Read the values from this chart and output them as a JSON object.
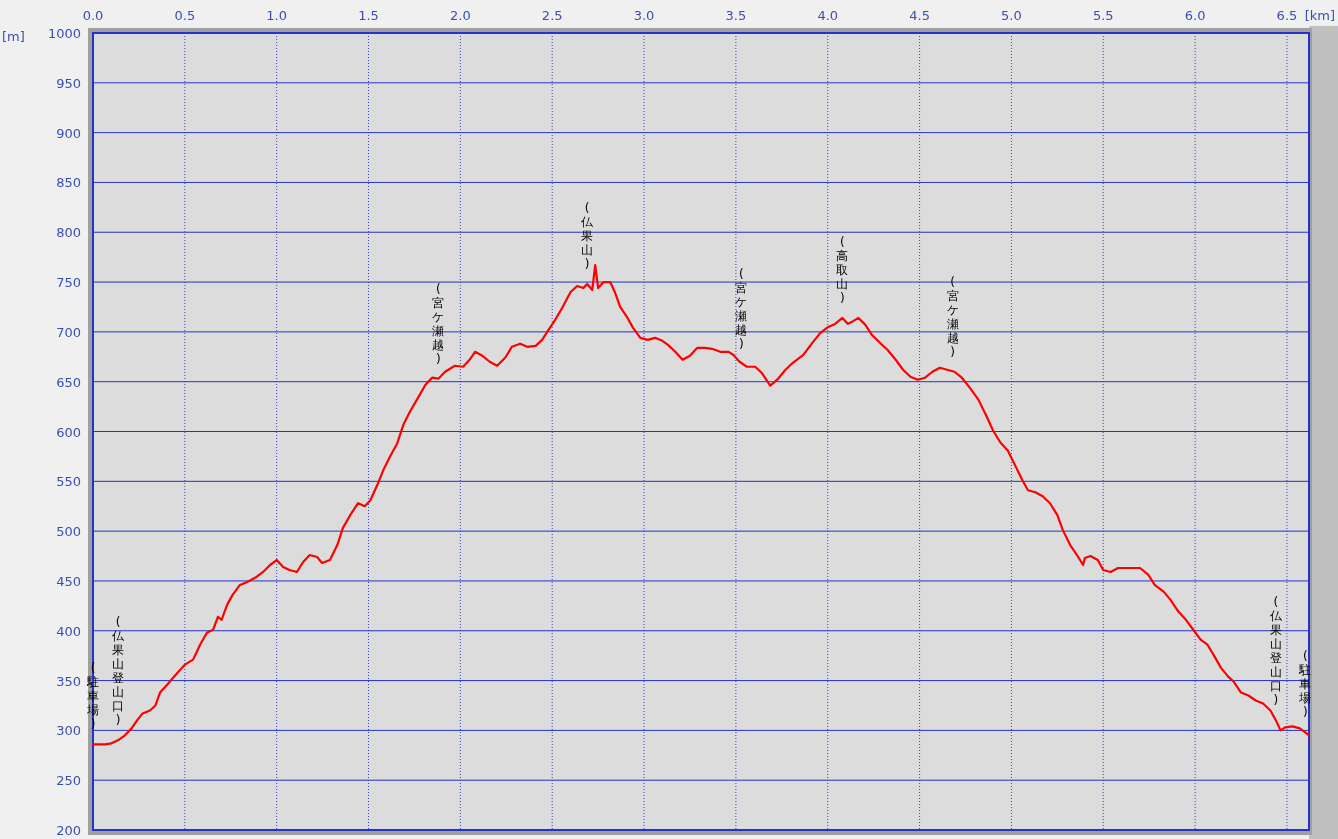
{
  "chart_data": {
    "type": "line",
    "xlabel": "[km]",
    "ylabel": "[m]",
    "xlim": [
      0,
      6.62
    ],
    "ylim": [
      200,
      1000
    ],
    "xticks": [
      {
        "value": 0,
        "label": "0.0"
      },
      {
        "value": 0.5,
        "label": "0.5"
      },
      {
        "value": 1,
        "label": "1.0"
      },
      {
        "value": 1.5,
        "label": "1.5"
      },
      {
        "value": 2,
        "label": "2.0"
      },
      {
        "value": 2.5,
        "label": "2.5"
      },
      {
        "value": 3,
        "label": "3.0"
      },
      {
        "value": 3.5,
        "label": "3.5"
      },
      {
        "value": 4,
        "label": "4.0"
      },
      {
        "value": 4.5,
        "label": "4.5"
      },
      {
        "value": 5,
        "label": "5.0"
      },
      {
        "value": 5.5,
        "label": "5.5"
      },
      {
        "value": 6,
        "label": "6.0"
      },
      {
        "value": 6.5,
        "label": "6.5"
      }
    ],
    "yticks": [
      200,
      250,
      300,
      350,
      400,
      450,
      500,
      550,
      600,
      650,
      700,
      750,
      800,
      850,
      900,
      950,
      1000
    ],
    "grid": true,
    "line_style": "solid",
    "series": [
      {
        "color": "#ff0000",
        "x": [
          0,
          0.065,
          0.1,
          0.136,
          0.174,
          0.21,
          0.24,
          0.27,
          0.31,
          0.34,
          0.365,
          0.4,
          0.447,
          0.5,
          0.545,
          0.583,
          0.62,
          0.654,
          0.68,
          0.7,
          0.73,
          0.76,
          0.8,
          0.84,
          0.89,
          0.926,
          0.964,
          1.0,
          1.035,
          1.07,
          1.11,
          1.144,
          1.18,
          1.22,
          1.247,
          1.29,
          1.33,
          1.36,
          1.4,
          1.443,
          1.48,
          1.51,
          1.547,
          1.58,
          1.62,
          1.656,
          1.69,
          1.726,
          1.77,
          1.81,
          1.846,
          1.88,
          1.917,
          1.97,
          2.015,
          2.05,
          2.08,
          2.12,
          2.16,
          2.2,
          2.244,
          2.28,
          2.326,
          2.364,
          2.41,
          2.445,
          2.48,
          2.516,
          2.554,
          2.6,
          2.636,
          2.67,
          2.69,
          2.718,
          2.734,
          2.75,
          2.78,
          2.816,
          2.843,
          2.87,
          2.91,
          2.94,
          2.98,
          3.02,
          3.06,
          3.1,
          3.13,
          3.17,
          3.21,
          3.25,
          3.29,
          3.33,
          3.37,
          3.415,
          3.46,
          3.485,
          3.52,
          3.56,
          3.605,
          3.64,
          3.687,
          3.725,
          3.77,
          3.81,
          3.867,
          3.916,
          3.96,
          4.003,
          4.04,
          4.08,
          4.11,
          4.14,
          4.167,
          4.205,
          4.24,
          4.29,
          4.325,
          4.37,
          4.41,
          4.45,
          4.49,
          4.53,
          4.57,
          4.61,
          4.65,
          4.69,
          4.73,
          4.777,
          4.82,
          4.86,
          4.9,
          4.94,
          4.98,
          5.02,
          5.06,
          5.09,
          5.13,
          5.17,
          5.21,
          5.25,
          5.28,
          5.32,
          5.357,
          5.39,
          5.4,
          5.43,
          5.47,
          5.5,
          5.54,
          5.58,
          5.62,
          5.66,
          5.7,
          5.746,
          5.78,
          5.83,
          5.866,
          5.91,
          5.95,
          5.99,
          6.03,
          6.067,
          6.1,
          6.14,
          6.18,
          6.21,
          6.25,
          6.29,
          6.33,
          6.37,
          6.41,
          6.44,
          6.465,
          6.49,
          6.53,
          6.57,
          6.6,
          6.62
        ],
        "values": [
          286,
          286,
          287,
          290,
          295,
          302,
          310,
          317,
          320,
          325,
          338,
          345,
          355,
          366,
          371,
          386,
          398,
          401,
          414,
          411,
          426,
          436,
          446,
          449,
          454,
          459,
          466,
          471,
          464,
          461,
          459,
          469,
          476,
          474,
          468,
          471,
          486,
          503,
          516,
          528,
          525,
          531,
          546,
          561,
          576,
          588,
          607,
          620,
          634,
          647,
          654,
          653,
          660,
          666,
          665,
          672,
          680,
          676,
          670,
          666,
          674,
          685,
          688,
          685,
          686,
          692,
          702,
          712,
          724,
          740,
          746,
          744,
          748,
          742,
          767,
          744,
          750,
          750,
          739,
          725,
          714,
          704,
          694,
          692,
          694,
          691,
          687,
          680,
          672,
          676,
          684,
          684,
          683,
          680,
          680,
          677,
          670,
          665,
          665,
          659,
          646,
          652,
          662,
          669,
          677,
          689,
          699,
          705,
          708,
          714,
          708,
          711,
          714,
          707,
          697,
          688,
          682,
          672,
          662,
          655,
          652,
          654,
          660,
          664,
          662,
          660,
          654,
          643,
          632,
          617,
          601,
          589,
          581,
          566,
          551,
          541,
          539,
          535,
          528,
          516,
          501,
          486,
          476,
          466,
          473,
          475,
          471,
          461,
          459,
          463,
          463,
          463,
          463,
          456,
          446,
          439,
          431,
          419,
          411,
          401,
          391,
          386,
          376,
          363,
          354,
          349,
          338,
          335,
          330,
          327,
          320,
          310,
          300,
          303,
          304,
          302,
          298,
          295
        ]
      }
    ],
    "annotations": [
      {
        "text": "(駐車場)",
        "x": 0,
        "y": 286
      },
      {
        "text": "(仏果山登山口)",
        "x": 0.136,
        "y": 290
      },
      {
        "text": "(宮ケ瀬越)",
        "x": 1.88,
        "y": 653
      },
      {
        "text": "(仏果山)",
        "x": 2.69,
        "y": 748
      },
      {
        "text": "(宮ケ瀬越)",
        "x": 3.53,
        "y": 668
      },
      {
        "text": "(高取山)",
        "x": 4.08,
        "y": 714
      },
      {
        "text": "(宮ケ瀬越)",
        "x": 4.68,
        "y": 660
      },
      {
        "text": "(仏果山登山口)",
        "x": 6.44,
        "y": 310
      },
      {
        "text": "(駐車場)",
        "x": 6.6,
        "y": 298
      }
    ]
  }
}
